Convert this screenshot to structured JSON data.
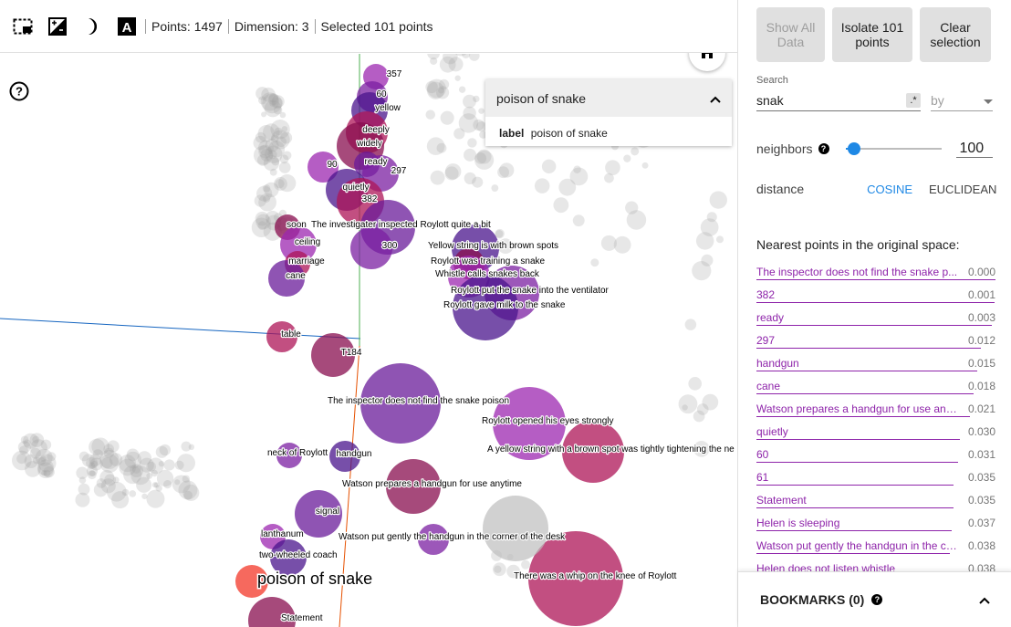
{
  "toolbar": {
    "icons": [
      "select-box-icon",
      "edit-label-icon",
      "night-mode-icon",
      "label-font-icon"
    ],
    "points_label": "Points: 1497",
    "dimension_label": "Dimension: 3",
    "selected_label": "Selected 101 points"
  },
  "canvas": {
    "hover_label": "poison of snake",
    "labels": [
      "357",
      "60",
      "yellow",
      "deeply",
      "widely",
      "ready",
      "90",
      "297",
      "quietly",
      "382",
      "soon",
      "The investigater inspected Roylott quite a bit",
      "ceiling",
      "300",
      "Yellow string is with brown spots",
      "marriage",
      "Roylott was training a snake",
      "cane",
      "Whistle calls snakes back",
      "Roylott put the snake into the ventilator",
      "Roylott gave milk to the snake",
      "table",
      "T184",
      "The inspector does not find the snake poison",
      "Roylott opened his eyes strongly",
      "neck of Roylott",
      "handgun",
      "A yellow string with a brown spot was tightly tightening the ne",
      "Watson prepares a handgun for use anytime",
      "signal",
      "lanthanum",
      "Watson put gently the handgun in the corner of the desk",
      "two-wheeled coach",
      "There was a whip on the knee of Roylott",
      "Statement"
    ]
  },
  "inspector": {
    "title": "poison of snake",
    "key": "label",
    "value": "poison of snake"
  },
  "panel": {
    "show_all_label": "Show All Data",
    "isolate_label": "Isolate 101 points",
    "clear_label": "Clear selection",
    "search_label": "Search",
    "search_value": "snak",
    "regex_badge": ".*",
    "by_placeholder": "by",
    "neighbors_label": "neighbors",
    "neighbors_value": "100",
    "neighbors_fraction": 0.02,
    "distance_label": "distance",
    "distance_options": [
      "COSINE",
      "EUCLIDEAN"
    ],
    "distance_selected": "COSINE",
    "nn_title": "Nearest points in the original space:",
    "nn_items": [
      {
        "label": "The inspector does not find the snake p...",
        "dist": "0.000"
      },
      {
        "label": "382",
        "dist": "0.001"
      },
      {
        "label": "ready",
        "dist": "0.003"
      },
      {
        "label": "297",
        "dist": "0.012"
      },
      {
        "label": "handgun",
        "dist": "0.015"
      },
      {
        "label": "cane",
        "dist": "0.018"
      },
      {
        "label": "Watson prepares a handgun for use any...",
        "dist": "0.021"
      },
      {
        "label": "quietly",
        "dist": "0.030"
      },
      {
        "label": "60",
        "dist": "0.031"
      },
      {
        "label": "61",
        "dist": "0.035"
      },
      {
        "label": "Statement",
        "dist": "0.035"
      },
      {
        "label": "Helen is sleeping",
        "dist": "0.037"
      },
      {
        "label": "Watson put gently the handgun in the co...",
        "dist": "0.038"
      },
      {
        "label": "Helen does not listen whistle",
        "dist": "0.038"
      }
    ],
    "bookmarks_label": "BOOKMARKS (0)"
  },
  "colors": {
    "accent": "#1e88e5",
    "nn_label": "#8e24aa",
    "point_selected": "#9c27b0",
    "point_grey": "#9e9e9e"
  }
}
